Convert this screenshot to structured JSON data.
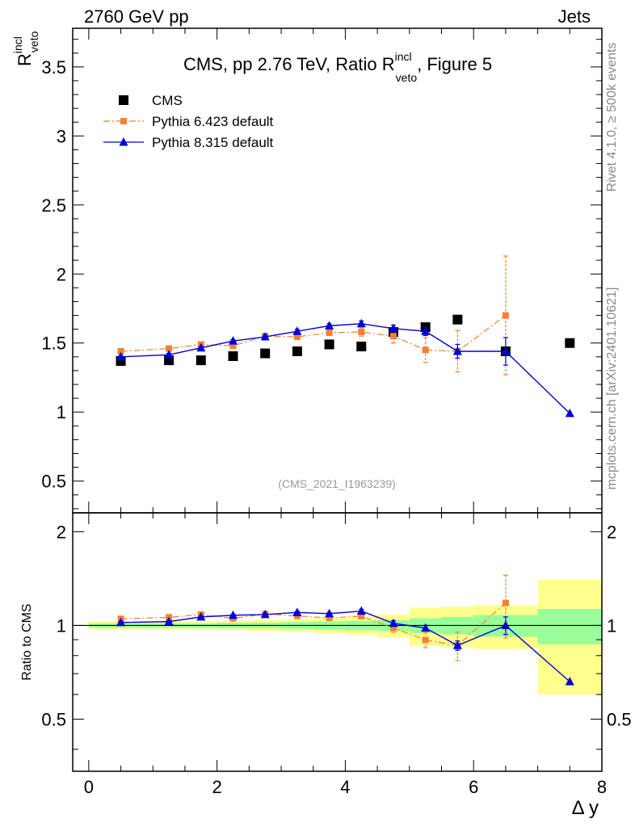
{
  "header": {
    "energy": "2760 GeV pp",
    "process": "Jets",
    "rivet": "Rivet 4.1.0, ≥ 500k events",
    "mcplots": "mcplots.cern.ch [arXiv:2401.10621]"
  },
  "chart_data": {
    "type": "scatter",
    "title": "CMS, pp 2.76 TeV, Ratio R",
    "title_sup": "incl",
    "title_sub": "veto",
    "title_suffix": ", Figure 5",
    "analysis_id": "(CMS_2021_I1963239)",
    "ylabel_main": "R",
    "ylabel_main_sup": "incl",
    "ylabel_main_sub": "veto",
    "ylabel_ratio": "Ratio to CMS",
    "xlabel": "Δ y",
    "xlim": [
      -0.25,
      8
    ],
    "ylim_main": [
      0.27,
      3.78
    ],
    "ylim_ratio": [
      0.34,
      2.3
    ],
    "xticks": [
      0,
      2,
      4,
      6,
      8
    ],
    "xtick_labels": [
      "0",
      "2",
      "4",
      "6",
      "8"
    ],
    "yticks_main": [
      0.5,
      1,
      1.5,
      2,
      2.5,
      3,
      3.5
    ],
    "ytick_labels_main": [
      "0.5",
      "1",
      "1.5",
      "2",
      "2.5",
      "3",
      "3.5"
    ],
    "yticks_ratio": [
      0.5,
      1,
      2
    ],
    "ytick_labels_ratio": [
      "0.5",
      "1",
      "2"
    ],
    "legend": [
      {
        "name": "CMS",
        "color": "#000000",
        "marker": "square"
      },
      {
        "name": "Pythia 6.423 default",
        "color": "#f5812f",
        "marker": "square",
        "style": "dashdot"
      },
      {
        "name": "Pythia 8.315 default",
        "color": "#0000d6",
        "marker": "triangle",
        "style": "solid"
      }
    ],
    "bins": [
      {
        "lo": 0,
        "hi": 1
      },
      {
        "lo": 1,
        "hi": 1.5
      },
      {
        "lo": 1.5,
        "hi": 2
      },
      {
        "lo": 2,
        "hi": 2.5
      },
      {
        "lo": 2.5,
        "hi": 3
      },
      {
        "lo": 3,
        "hi": 3.5
      },
      {
        "lo": 3.5,
        "hi": 4
      },
      {
        "lo": 4,
        "hi": 4.5
      },
      {
        "lo": 4.5,
        "hi": 5
      },
      {
        "lo": 5,
        "hi": 5.5
      },
      {
        "lo": 5.5,
        "hi": 6
      },
      {
        "lo": 6,
        "hi": 7
      },
      {
        "lo": 7,
        "hi": 8
      }
    ],
    "data": {
      "name": "CMS",
      "x": [
        0.5,
        1.25,
        1.75,
        2.25,
        2.75,
        3.25,
        3.75,
        4.25,
        4.75,
        5.25,
        5.75,
        6.5,
        7.5
      ],
      "y": [
        1.37,
        1.375,
        1.375,
        1.405,
        1.425,
        1.44,
        1.49,
        1.475,
        1.58,
        1.615,
        1.67,
        1.44,
        1.5
      ],
      "band_stat": [
        0.015,
        0.015,
        0.015,
        0.02,
        0.02,
        0.025,
        0.03,
        0.035,
        0.04,
        0.055,
        0.065,
        0.08,
        0.13
      ],
      "band_total": [
        0.03,
        0.03,
        0.03,
        0.035,
        0.04,
        0.045,
        0.055,
        0.065,
        0.085,
        0.14,
        0.15,
        0.16,
        0.4
      ]
    },
    "series": [
      {
        "name": "Pythia 6.423 default",
        "x": [
          0.5,
          1.25,
          1.75,
          2.25,
          2.75,
          3.25,
          3.75,
          4.25,
          4.75,
          5.25,
          5.75,
          6.5
        ],
        "y": [
          1.44,
          1.46,
          1.49,
          1.48,
          1.55,
          1.545,
          1.575,
          1.58,
          1.55,
          1.45,
          1.44,
          1.7
        ],
        "yerr": [
          0.01,
          0.01,
          0.015,
          0.015,
          0.015,
          0.02,
          0.02,
          0.03,
          0.05,
          0.09,
          0.15,
          0.43
        ],
        "ratio": [
          1.05,
          1.062,
          1.084,
          1.054,
          1.088,
          1.073,
          1.057,
          1.071,
          0.981,
          0.898,
          0.862,
          1.181
        ],
        "ratio_err": [
          0.01,
          0.01,
          0.012,
          0.012,
          0.012,
          0.015,
          0.015,
          0.02,
          0.03,
          0.05,
          0.09,
          0.27
        ]
      },
      {
        "name": "Pythia 8.315 default",
        "x": [
          0.5,
          1.25,
          1.75,
          2.25,
          2.75,
          3.25,
          3.75,
          4.25,
          4.75,
          5.25,
          5.75,
          6.5,
          7.5
        ],
        "y": [
          1.4,
          1.415,
          1.465,
          1.515,
          1.545,
          1.585,
          1.625,
          1.64,
          1.605,
          1.585,
          1.44,
          1.44,
          0.99
        ],
        "yerr": [
          0.01,
          0.01,
          0.01,
          0.01,
          0.015,
          0.015,
          0.015,
          0.02,
          0.025,
          0.03,
          0.05,
          0.1,
          0.0
        ],
        "ratio": [
          1.022,
          1.029,
          1.065,
          1.078,
          1.084,
          1.101,
          1.091,
          1.112,
          1.016,
          0.981,
          0.862,
          1.0,
          0.66
        ],
        "ratio_err": [
          0.008,
          0.008,
          0.008,
          0.008,
          0.01,
          0.01,
          0.01,
          0.015,
          0.02,
          0.02,
          0.03,
          0.065,
          0.0
        ]
      }
    ]
  }
}
